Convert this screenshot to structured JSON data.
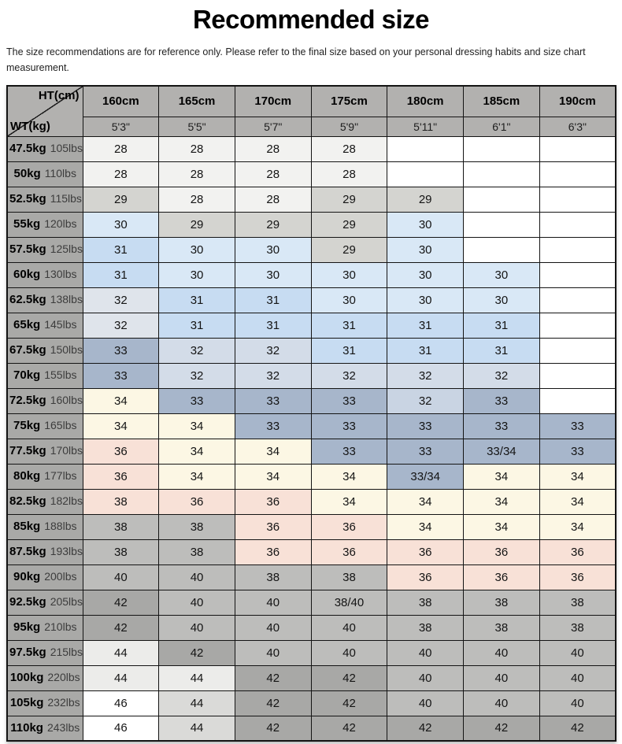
{
  "page": {
    "title": "Recommended size",
    "disclaimer": "The size recommendations are for reference only. Please refer to the final size based on your personal dressing habits and size chart measurement."
  },
  "table": {
    "corner": {
      "top_right": "HT(cm)",
      "bottom_left": "WT(kg)"
    },
    "columns": [
      {
        "cm": "160cm",
        "ft": "5'3\""
      },
      {
        "cm": "165cm",
        "ft": "5'5\""
      },
      {
        "cm": "170cm",
        "ft": "5'7\""
      },
      {
        "cm": "175cm",
        "ft": "5'9\""
      },
      {
        "cm": "180cm",
        "ft": "5'11\""
      },
      {
        "cm": "185cm",
        "ft": "6'1\""
      },
      {
        "cm": "190cm",
        "ft": "6'3\""
      }
    ],
    "palette": {
      "empty": "#ffffff",
      "g28": "#f2f2f0",
      "g29": "#d4d4d0",
      "b30": "#d9e8f6",
      "b31": "#c7dcf2",
      "g32": "#dfe4eb",
      "bg32": "#d3dce8",
      "bg32l": "#c9d4e3",
      "bg33": "#a7b6cb",
      "cr34": "#fcf7e4",
      "pk36": "#f8e1d7",
      "gy40": "#bdbdbb",
      "gy42": "#a8a8a6",
      "gy44l": "#ececea",
      "gy44": "#dadad8",
      "white46": "#ffffff",
      "header_bg": "#b2b1af",
      "row_header_bg": "#a9a9a7",
      "border": "#141414"
    },
    "rows": [
      {
        "kg": "47.5kg",
        "lbs": "105lbs",
        "cells": [
          [
            "28",
            "g28"
          ],
          [
            "28",
            "g28"
          ],
          [
            "28",
            "g28"
          ],
          [
            "28",
            "g28"
          ],
          [
            "",
            "empty"
          ],
          [
            "",
            "empty"
          ],
          [
            "",
            "empty"
          ]
        ]
      },
      {
        "kg": "50kg",
        "lbs": "110lbs",
        "cells": [
          [
            "28",
            "g28"
          ],
          [
            "28",
            "g28"
          ],
          [
            "28",
            "g28"
          ],
          [
            "28",
            "g28"
          ],
          [
            "",
            "empty"
          ],
          [
            "",
            "empty"
          ],
          [
            "",
            "empty"
          ]
        ]
      },
      {
        "kg": "52.5kg",
        "lbs": "115lbs",
        "cells": [
          [
            "29",
            "g29"
          ],
          [
            "28",
            "g28"
          ],
          [
            "28",
            "g28"
          ],
          [
            "29",
            "g29"
          ],
          [
            "29",
            "g29"
          ],
          [
            "",
            "empty"
          ],
          [
            "",
            "empty"
          ]
        ]
      },
      {
        "kg": "55kg",
        "lbs": "120lbs",
        "cells": [
          [
            "30",
            "b30"
          ],
          [
            "29",
            "g29"
          ],
          [
            "29",
            "g29"
          ],
          [
            "29",
            "g29"
          ],
          [
            "30",
            "b30"
          ],
          [
            "",
            "empty"
          ],
          [
            "",
            "empty"
          ]
        ]
      },
      {
        "kg": "57.5kg",
        "lbs": "125lbs",
        "cells": [
          [
            "31",
            "b31"
          ],
          [
            "30",
            "b30"
          ],
          [
            "30",
            "b30"
          ],
          [
            "29",
            "g29"
          ],
          [
            "30",
            "b30"
          ],
          [
            "",
            "empty"
          ],
          [
            "",
            "empty"
          ]
        ]
      },
      {
        "kg": "60kg",
        "lbs": "130lbs",
        "cells": [
          [
            "31",
            "b31"
          ],
          [
            "30",
            "b30"
          ],
          [
            "30",
            "b30"
          ],
          [
            "30",
            "b30"
          ],
          [
            "30",
            "b30"
          ],
          [
            "30",
            "b30"
          ],
          [
            "",
            "empty"
          ]
        ]
      },
      {
        "kg": "62.5kg",
        "lbs": "138lbs",
        "cells": [
          [
            "32",
            "g32"
          ],
          [
            "31",
            "b31"
          ],
          [
            "31",
            "b31"
          ],
          [
            "30",
            "b30"
          ],
          [
            "30",
            "b30"
          ],
          [
            "30",
            "b30"
          ],
          [
            "",
            "empty"
          ]
        ]
      },
      {
        "kg": "65kg",
        "lbs": "145lbs",
        "cells": [
          [
            "32",
            "g32"
          ],
          [
            "31",
            "b31"
          ],
          [
            "31",
            "b31"
          ],
          [
            "31",
            "b31"
          ],
          [
            "31",
            "b31"
          ],
          [
            "31",
            "b31"
          ],
          [
            "",
            "empty"
          ]
        ]
      },
      {
        "kg": "67.5kg",
        "lbs": "150lbs",
        "cells": [
          [
            "33",
            "bg33"
          ],
          [
            "32",
            "bg32"
          ],
          [
            "32",
            "bg32"
          ],
          [
            "31",
            "b31"
          ],
          [
            "31",
            "b31"
          ],
          [
            "31",
            "b31"
          ],
          [
            "",
            "empty"
          ]
        ]
      },
      {
        "kg": "70kg",
        "lbs": "155lbs",
        "cells": [
          [
            "33",
            "bg33"
          ],
          [
            "32",
            "bg32"
          ],
          [
            "32",
            "bg32"
          ],
          [
            "32",
            "bg32"
          ],
          [
            "32",
            "bg32"
          ],
          [
            "32",
            "bg32"
          ],
          [
            "",
            "empty"
          ]
        ]
      },
      {
        "kg": "72.5kg",
        "lbs": "160lbs",
        "cells": [
          [
            "34",
            "cr34"
          ],
          [
            "33",
            "bg33"
          ],
          [
            "33",
            "bg33"
          ],
          [
            "33",
            "bg33"
          ],
          [
            "32",
            "bg32l"
          ],
          [
            "33",
            "bg33"
          ],
          [
            "",
            "empty"
          ]
        ]
      },
      {
        "kg": "75kg",
        "lbs": "165lbs",
        "cells": [
          [
            "34",
            "cr34"
          ],
          [
            "34",
            "cr34"
          ],
          [
            "33",
            "bg33"
          ],
          [
            "33",
            "bg33"
          ],
          [
            "33",
            "bg33"
          ],
          [
            "33",
            "bg33"
          ],
          [
            "33",
            "bg33"
          ]
        ]
      },
      {
        "kg": "77.5kg",
        "lbs": "170lbs",
        "cells": [
          [
            "36",
            "pk36"
          ],
          [
            "34",
            "cr34"
          ],
          [
            "34",
            "cr34"
          ],
          [
            "33",
            "bg33"
          ],
          [
            "33",
            "bg33"
          ],
          [
            "33/34",
            "bg33"
          ],
          [
            "33",
            "bg33"
          ]
        ]
      },
      {
        "kg": "80kg",
        "lbs": "177lbs",
        "cells": [
          [
            "36",
            "pk36"
          ],
          [
            "34",
            "cr34"
          ],
          [
            "34",
            "cr34"
          ],
          [
            "34",
            "cr34"
          ],
          [
            "33/34",
            "bg33"
          ],
          [
            "34",
            "cr34"
          ],
          [
            "34",
            "cr34"
          ]
        ]
      },
      {
        "kg": "82.5kg",
        "lbs": "182lbs",
        "cells": [
          [
            "38",
            "pk36"
          ],
          [
            "36",
            "pk36"
          ],
          [
            "36",
            "pk36"
          ],
          [
            "34",
            "cr34"
          ],
          [
            "34",
            "cr34"
          ],
          [
            "34",
            "cr34"
          ],
          [
            "34",
            "cr34"
          ]
        ]
      },
      {
        "kg": "85kg",
        "lbs": "188lbs",
        "cells": [
          [
            "38",
            "gy40"
          ],
          [
            "38",
            "gy40"
          ],
          [
            "36",
            "pk36"
          ],
          [
            "36",
            "pk36"
          ],
          [
            "34",
            "cr34"
          ],
          [
            "34",
            "cr34"
          ],
          [
            "34",
            "cr34"
          ]
        ]
      },
      {
        "kg": "87.5kg",
        "lbs": "193lbs",
        "cells": [
          [
            "38",
            "gy40"
          ],
          [
            "38",
            "gy40"
          ],
          [
            "36",
            "pk36"
          ],
          [
            "36",
            "pk36"
          ],
          [
            "36",
            "pk36"
          ],
          [
            "36",
            "pk36"
          ],
          [
            "36",
            "pk36"
          ]
        ]
      },
      {
        "kg": "90kg",
        "lbs": "200lbs",
        "cells": [
          [
            "40",
            "gy40"
          ],
          [
            "40",
            "gy40"
          ],
          [
            "38",
            "gy40"
          ],
          [
            "38",
            "gy40"
          ],
          [
            "36",
            "pk36"
          ],
          [
            "36",
            "pk36"
          ],
          [
            "36",
            "pk36"
          ]
        ]
      },
      {
        "kg": "92.5kg",
        "lbs": "205lbs",
        "cells": [
          [
            "42",
            "gy42"
          ],
          [
            "40",
            "gy40"
          ],
          [
            "40",
            "gy40"
          ],
          [
            "38/40",
            "gy40"
          ],
          [
            "38",
            "gy40"
          ],
          [
            "38",
            "gy40"
          ],
          [
            "38",
            "gy40"
          ]
        ]
      },
      {
        "kg": "95kg",
        "lbs": "210lbs",
        "cells": [
          [
            "42",
            "gy42"
          ],
          [
            "40",
            "gy40"
          ],
          [
            "40",
            "gy40"
          ],
          [
            "40",
            "gy40"
          ],
          [
            "38",
            "gy40"
          ],
          [
            "38",
            "gy40"
          ],
          [
            "38",
            "gy40"
          ]
        ]
      },
      {
        "kg": "97.5kg",
        "lbs": "215lbs",
        "cells": [
          [
            "44",
            "gy44l"
          ],
          [
            "42",
            "gy42"
          ],
          [
            "40",
            "gy40"
          ],
          [
            "40",
            "gy40"
          ],
          [
            "40",
            "gy40"
          ],
          [
            "40",
            "gy40"
          ],
          [
            "40",
            "gy40"
          ]
        ]
      },
      {
        "kg": "100kg",
        "lbs": "220lbs",
        "cells": [
          [
            "44",
            "gy44l"
          ],
          [
            "44",
            "gy44l"
          ],
          [
            "42",
            "gy42"
          ],
          [
            "42",
            "gy42"
          ],
          [
            "40",
            "gy40"
          ],
          [
            "40",
            "gy40"
          ],
          [
            "40",
            "gy40"
          ]
        ]
      },
      {
        "kg": "105kg",
        "lbs": "232lbs",
        "cells": [
          [
            "46",
            "white46"
          ],
          [
            "44",
            "gy44"
          ],
          [
            "42",
            "gy42"
          ],
          [
            "42",
            "gy42"
          ],
          [
            "40",
            "gy40"
          ],
          [
            "40",
            "gy40"
          ],
          [
            "40",
            "gy40"
          ]
        ]
      },
      {
        "kg": "110kg",
        "lbs": "243lbs",
        "cells": [
          [
            "46",
            "white46"
          ],
          [
            "44",
            "gy44"
          ],
          [
            "42",
            "gy42"
          ],
          [
            "42",
            "gy42"
          ],
          [
            "42",
            "gy42"
          ],
          [
            "42",
            "gy42"
          ],
          [
            "42",
            "gy42"
          ]
        ]
      }
    ]
  }
}
